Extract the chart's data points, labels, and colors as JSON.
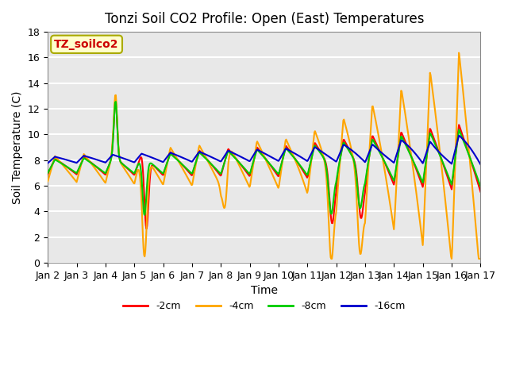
{
  "title": "Tonzi Soil CO2 Profile: Open (East) Temperatures",
  "xlabel": "Time",
  "ylabel": "Soil Temperature (C)",
  "annotation": "TZ_soilco2",
  "ylim": [
    0,
    18
  ],
  "xlim_start": 1,
  "xlim_end": 16,
  "xtick_labels": [
    "Jan 2",
    "Jan 3",
    "Jan 4",
    "Jan 5",
    "Jan 6",
    "Jan 7",
    "Jan 8",
    "Jan 9",
    "Jan 10",
    "Jan 11",
    "Jan 12",
    "Jan 13",
    "Jan 14",
    "Jan 15",
    "Jan 16",
    "Jan 17"
  ],
  "xtick_positions": [
    1,
    2,
    3,
    4,
    5,
    6,
    7,
    8,
    9,
    10,
    11,
    12,
    13,
    14,
    15,
    16
  ],
  "ytick_positions": [
    0,
    2,
    4,
    6,
    8,
    10,
    12,
    14,
    16,
    18
  ],
  "color_2cm": "#FF0000",
  "color_4cm": "#FFA500",
  "color_8cm": "#00CC00",
  "color_16cm": "#0000CC",
  "line_width": 1.5,
  "plot_bg_color": "#E8E8E8",
  "annotation_bg": "#FFFFCC",
  "annotation_border_color": "#AAAA00",
  "annotation_text_color": "#CC0000",
  "grid_color": "#FFFFFF",
  "title_fontsize": 12,
  "label_fontsize": 10,
  "tick_fontsize": 9,
  "xtick_fontsize": 7.5,
  "legend_fontsize": 9
}
